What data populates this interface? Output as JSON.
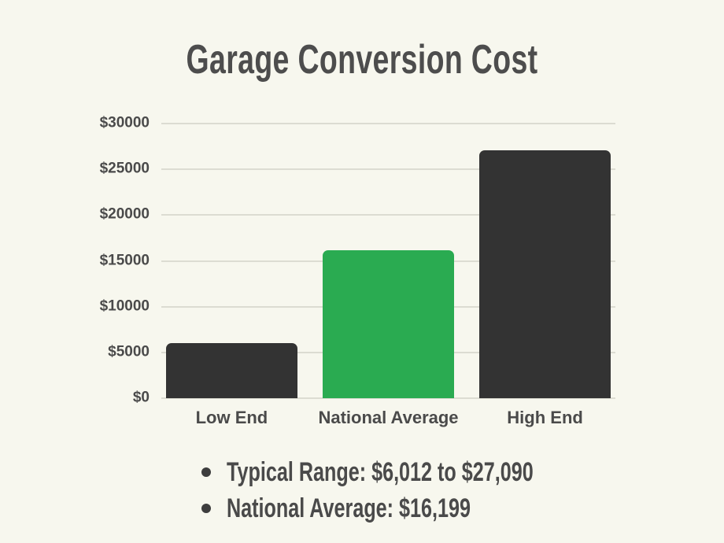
{
  "title": "Garage Conversion Cost",
  "chart_data": {
    "type": "bar",
    "title": "Garage Conversion Cost",
    "categories": [
      "Low End",
      "National Average",
      "High End"
    ],
    "values": [
      6012,
      16199,
      27090
    ],
    "bar_colors": [
      "#333333",
      "#2aab51",
      "#333333"
    ],
    "xlabel": "",
    "ylabel": "",
    "ylim": [
      0,
      30000
    ],
    "y_ticks": [
      {
        "label": "$30000",
        "value": 30000
      },
      {
        "label": "$25000",
        "value": 25000
      },
      {
        "label": "$20000",
        "value": 20000
      },
      {
        "label": "$15000",
        "value": 15000
      },
      {
        "label": "$10000",
        "value": 10000
      },
      {
        "label": "$5000",
        "value": 5000
      },
      {
        "label": "$0",
        "value": 0
      }
    ],
    "grid": "horizontal",
    "legend_position": "none"
  },
  "notes": {
    "items": [
      "Typical Range: $6,012 to $27,090",
      "National Average: $16,199"
    ]
  },
  "colors": {
    "background": "#f7f7ee",
    "bar_dark": "#333333",
    "bar_accent_green": "#2aab51",
    "gridline": "#dcdcd2",
    "text": "#4a4a4a"
  }
}
